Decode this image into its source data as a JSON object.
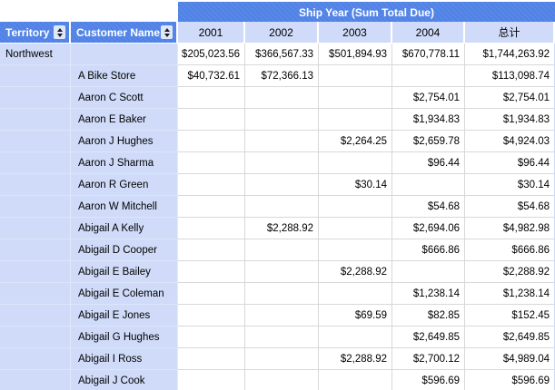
{
  "table": {
    "band_title": "Ship Year (Sum Total Due)",
    "territory_header": "Territory",
    "customer_header": "Customer Name",
    "year_columns": [
      "2001",
      "2002",
      "2003",
      "2004",
      "总计"
    ],
    "colors": {
      "header_blue": "#5082e6",
      "row_header_lavender": "#cfdbf8",
      "gridline": "#d8d8d8"
    },
    "icons": {
      "sort": "sort-up-down-icon"
    },
    "rows": [
      {
        "territory": "Northwest",
        "customer": "",
        "values": [
          "$205,023.56",
          "$366,567.33",
          "$501,894.93",
          "$670,778.11",
          "$1,744,263.92"
        ]
      },
      {
        "territory": "",
        "customer": "A Bike Store",
        "values": [
          "$40,732.61",
          "$72,366.13",
          "",
          "",
          "$113,098.74"
        ]
      },
      {
        "territory": "",
        "customer": "Aaron C Scott",
        "values": [
          "",
          "",
          "",
          "$2,754.01",
          "$2,754.01"
        ]
      },
      {
        "territory": "",
        "customer": "Aaron E Baker",
        "values": [
          "",
          "",
          "",
          "$1,934.83",
          "$1,934.83"
        ]
      },
      {
        "territory": "",
        "customer": "Aaron J Hughes",
        "values": [
          "",
          "",
          "$2,264.25",
          "$2,659.78",
          "$4,924.03"
        ]
      },
      {
        "territory": "",
        "customer": "Aaron J Sharma",
        "values": [
          "",
          "",
          "",
          "$96.44",
          "$96.44"
        ]
      },
      {
        "territory": "",
        "customer": "Aaron R Green",
        "values": [
          "",
          "",
          "$30.14",
          "",
          "$30.14"
        ]
      },
      {
        "territory": "",
        "customer": "Aaron W Mitchell",
        "values": [
          "",
          "",
          "",
          "$54.68",
          "$54.68"
        ]
      },
      {
        "territory": "",
        "customer": "Abigail A Kelly",
        "values": [
          "",
          "$2,288.92",
          "",
          "$2,694.06",
          "$4,982.98"
        ]
      },
      {
        "territory": "",
        "customer": "Abigail D Cooper",
        "values": [
          "",
          "",
          "",
          "$666.86",
          "$666.86"
        ]
      },
      {
        "territory": "",
        "customer": "Abigail E Bailey",
        "values": [
          "",
          "",
          "$2,288.92",
          "",
          "$2,288.92"
        ]
      },
      {
        "territory": "",
        "customer": "Abigail E Coleman",
        "values": [
          "",
          "",
          "",
          "$1,238.14",
          "$1,238.14"
        ]
      },
      {
        "territory": "",
        "customer": "Abigail E Jones",
        "values": [
          "",
          "",
          "$69.59",
          "$82.85",
          "$152.45"
        ]
      },
      {
        "territory": "",
        "customer": "Abigail G Hughes",
        "values": [
          "",
          "",
          "",
          "$2,649.85",
          "$2,649.85"
        ]
      },
      {
        "territory": "",
        "customer": "Abigail I Ross",
        "values": [
          "",
          "",
          "$2,288.92",
          "$2,700.12",
          "$4,989.04"
        ]
      },
      {
        "territory": "",
        "customer": "Abigail J Cook",
        "values": [
          "",
          "",
          "",
          "$596.69",
          "$596.69"
        ]
      }
    ]
  }
}
